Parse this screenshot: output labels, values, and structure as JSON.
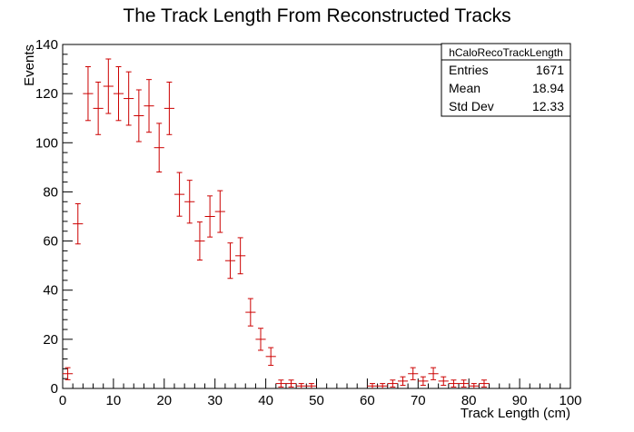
{
  "chart_data": {
    "type": "scatter",
    "title": "The Track Length From Reconstructed Tracks",
    "xlabel": "Track Length (cm)",
    "ylabel": "Events",
    "xlim": [
      0,
      100
    ],
    "ylim": [
      0,
      140
    ],
    "xticks": [
      0,
      10,
      20,
      30,
      40,
      50,
      60,
      70,
      80,
      90,
      100
    ],
    "yticks": [
      0,
      20,
      40,
      60,
      80,
      100,
      120,
      140
    ],
    "bin_width": 2,
    "series_color": "#cc0000",
    "x": [
      1,
      3,
      5,
      7,
      9,
      11,
      13,
      15,
      17,
      19,
      21,
      23,
      25,
      27,
      29,
      31,
      33,
      35,
      37,
      39,
      41,
      43,
      45,
      47,
      49,
      61,
      63,
      65,
      67,
      69,
      71,
      73,
      75,
      77,
      79,
      81,
      83
    ],
    "y": [
      6,
      67,
      120,
      114,
      123,
      120,
      118,
      111,
      115,
      98,
      114,
      79,
      76,
      60,
      70,
      72,
      52,
      54,
      31,
      20,
      13,
      2,
      2,
      1,
      1,
      1,
      1,
      2,
      3,
      6,
      3,
      6,
      3,
      2,
      2,
      1,
      2
    ],
    "stats": {
      "name": "hCaloRecoTrackLength",
      "rows": [
        {
          "label": "Entries",
          "value": "1671"
        },
        {
          "label": "Mean",
          "value": "18.94"
        },
        {
          "label": "Std Dev",
          "value": "12.33"
        }
      ]
    }
  }
}
